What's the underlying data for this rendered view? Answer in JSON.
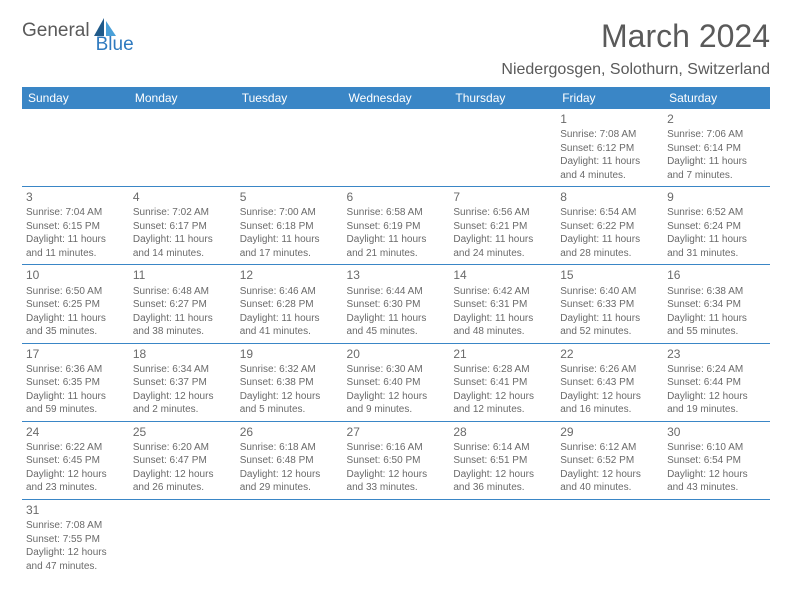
{
  "branding": {
    "word1": "General",
    "word2": "Blue",
    "logo_colors": {
      "dark": "#1f5a8a",
      "light": "#4aa0d8"
    }
  },
  "header": {
    "title": "March 2024",
    "location": "Niedergosgen, Solothurn, Switzerland"
  },
  "style": {
    "header_bg": "#3a86c6",
    "header_fg": "#ffffff",
    "text_color": "#6a6a6a",
    "border_color": "#3a86c6",
    "title_fontsize": 32,
    "location_fontsize": 16,
    "th_fontsize": 12,
    "cell_fontsize": 10,
    "daynum_fontsize": 12
  },
  "columns": [
    "Sunday",
    "Monday",
    "Tuesday",
    "Wednesday",
    "Thursday",
    "Friday",
    "Saturday"
  ],
  "weeks": [
    [
      null,
      null,
      null,
      null,
      null,
      {
        "n": "1",
        "sr": "Sunrise: 7:08 AM",
        "ss": "Sunset: 6:12 PM",
        "d1": "Daylight: 11 hours",
        "d2": "and 4 minutes."
      },
      {
        "n": "2",
        "sr": "Sunrise: 7:06 AM",
        "ss": "Sunset: 6:14 PM",
        "d1": "Daylight: 11 hours",
        "d2": "and 7 minutes."
      }
    ],
    [
      {
        "n": "3",
        "sr": "Sunrise: 7:04 AM",
        "ss": "Sunset: 6:15 PM",
        "d1": "Daylight: 11 hours",
        "d2": "and 11 minutes."
      },
      {
        "n": "4",
        "sr": "Sunrise: 7:02 AM",
        "ss": "Sunset: 6:17 PM",
        "d1": "Daylight: 11 hours",
        "d2": "and 14 minutes."
      },
      {
        "n": "5",
        "sr": "Sunrise: 7:00 AM",
        "ss": "Sunset: 6:18 PM",
        "d1": "Daylight: 11 hours",
        "d2": "and 17 minutes."
      },
      {
        "n": "6",
        "sr": "Sunrise: 6:58 AM",
        "ss": "Sunset: 6:19 PM",
        "d1": "Daylight: 11 hours",
        "d2": "and 21 minutes."
      },
      {
        "n": "7",
        "sr": "Sunrise: 6:56 AM",
        "ss": "Sunset: 6:21 PM",
        "d1": "Daylight: 11 hours",
        "d2": "and 24 minutes."
      },
      {
        "n": "8",
        "sr": "Sunrise: 6:54 AM",
        "ss": "Sunset: 6:22 PM",
        "d1": "Daylight: 11 hours",
        "d2": "and 28 minutes."
      },
      {
        "n": "9",
        "sr": "Sunrise: 6:52 AM",
        "ss": "Sunset: 6:24 PM",
        "d1": "Daylight: 11 hours",
        "d2": "and 31 minutes."
      }
    ],
    [
      {
        "n": "10",
        "sr": "Sunrise: 6:50 AM",
        "ss": "Sunset: 6:25 PM",
        "d1": "Daylight: 11 hours",
        "d2": "and 35 minutes."
      },
      {
        "n": "11",
        "sr": "Sunrise: 6:48 AM",
        "ss": "Sunset: 6:27 PM",
        "d1": "Daylight: 11 hours",
        "d2": "and 38 minutes."
      },
      {
        "n": "12",
        "sr": "Sunrise: 6:46 AM",
        "ss": "Sunset: 6:28 PM",
        "d1": "Daylight: 11 hours",
        "d2": "and 41 minutes."
      },
      {
        "n": "13",
        "sr": "Sunrise: 6:44 AM",
        "ss": "Sunset: 6:30 PM",
        "d1": "Daylight: 11 hours",
        "d2": "and 45 minutes."
      },
      {
        "n": "14",
        "sr": "Sunrise: 6:42 AM",
        "ss": "Sunset: 6:31 PM",
        "d1": "Daylight: 11 hours",
        "d2": "and 48 minutes."
      },
      {
        "n": "15",
        "sr": "Sunrise: 6:40 AM",
        "ss": "Sunset: 6:33 PM",
        "d1": "Daylight: 11 hours",
        "d2": "and 52 minutes."
      },
      {
        "n": "16",
        "sr": "Sunrise: 6:38 AM",
        "ss": "Sunset: 6:34 PM",
        "d1": "Daylight: 11 hours",
        "d2": "and 55 minutes."
      }
    ],
    [
      {
        "n": "17",
        "sr": "Sunrise: 6:36 AM",
        "ss": "Sunset: 6:35 PM",
        "d1": "Daylight: 11 hours",
        "d2": "and 59 minutes."
      },
      {
        "n": "18",
        "sr": "Sunrise: 6:34 AM",
        "ss": "Sunset: 6:37 PM",
        "d1": "Daylight: 12 hours",
        "d2": "and 2 minutes."
      },
      {
        "n": "19",
        "sr": "Sunrise: 6:32 AM",
        "ss": "Sunset: 6:38 PM",
        "d1": "Daylight: 12 hours",
        "d2": "and 5 minutes."
      },
      {
        "n": "20",
        "sr": "Sunrise: 6:30 AM",
        "ss": "Sunset: 6:40 PM",
        "d1": "Daylight: 12 hours",
        "d2": "and 9 minutes."
      },
      {
        "n": "21",
        "sr": "Sunrise: 6:28 AM",
        "ss": "Sunset: 6:41 PM",
        "d1": "Daylight: 12 hours",
        "d2": "and 12 minutes."
      },
      {
        "n": "22",
        "sr": "Sunrise: 6:26 AM",
        "ss": "Sunset: 6:43 PM",
        "d1": "Daylight: 12 hours",
        "d2": "and 16 minutes."
      },
      {
        "n": "23",
        "sr": "Sunrise: 6:24 AM",
        "ss": "Sunset: 6:44 PM",
        "d1": "Daylight: 12 hours",
        "d2": "and 19 minutes."
      }
    ],
    [
      {
        "n": "24",
        "sr": "Sunrise: 6:22 AM",
        "ss": "Sunset: 6:45 PM",
        "d1": "Daylight: 12 hours",
        "d2": "and 23 minutes."
      },
      {
        "n": "25",
        "sr": "Sunrise: 6:20 AM",
        "ss": "Sunset: 6:47 PM",
        "d1": "Daylight: 12 hours",
        "d2": "and 26 minutes."
      },
      {
        "n": "26",
        "sr": "Sunrise: 6:18 AM",
        "ss": "Sunset: 6:48 PM",
        "d1": "Daylight: 12 hours",
        "d2": "and 29 minutes."
      },
      {
        "n": "27",
        "sr": "Sunrise: 6:16 AM",
        "ss": "Sunset: 6:50 PM",
        "d1": "Daylight: 12 hours",
        "d2": "and 33 minutes."
      },
      {
        "n": "28",
        "sr": "Sunrise: 6:14 AM",
        "ss": "Sunset: 6:51 PM",
        "d1": "Daylight: 12 hours",
        "d2": "and 36 minutes."
      },
      {
        "n": "29",
        "sr": "Sunrise: 6:12 AM",
        "ss": "Sunset: 6:52 PM",
        "d1": "Daylight: 12 hours",
        "d2": "and 40 minutes."
      },
      {
        "n": "30",
        "sr": "Sunrise: 6:10 AM",
        "ss": "Sunset: 6:54 PM",
        "d1": "Daylight: 12 hours",
        "d2": "and 43 minutes."
      }
    ],
    [
      {
        "n": "31",
        "sr": "Sunrise: 7:08 AM",
        "ss": "Sunset: 7:55 PM",
        "d1": "Daylight: 12 hours",
        "d2": "and 47 minutes."
      },
      null,
      null,
      null,
      null,
      null,
      null
    ]
  ]
}
